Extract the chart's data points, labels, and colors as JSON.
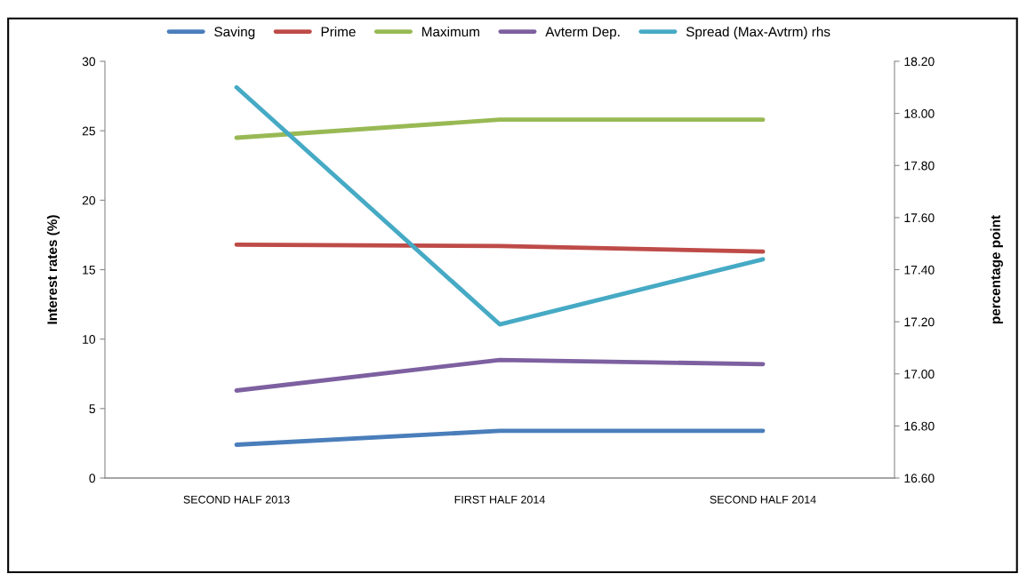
{
  "chart_data": {
    "type": "line",
    "ylabel": "Interest rates (%)",
    "y2label": "percentage point",
    "categories": [
      "SECOND HALF 2013",
      "FIRST HALF 2014",
      "SECOND HALF 2014"
    ],
    "series": [
      {
        "name": "Saving",
        "color": "#4a7ebb",
        "values": [
          2.4,
          3.4,
          3.4
        ]
      },
      {
        "name": "Prime",
        "color": "#be4b48",
        "values": [
          16.8,
          16.7,
          16.3
        ]
      },
      {
        "name": "Maximum",
        "color": "#98b954",
        "values": [
          24.5,
          25.8,
          25.8
        ]
      },
      {
        "name": "Avterm Dep.",
        "color": "#7d60a0",
        "values": [
          6.3,
          8.5,
          8.2
        ]
      },
      {
        "name": "Spread (Max-Avtrm) rhs",
        "color": "#46aac5",
        "values": [
          18.1,
          17.19,
          17.44
        ],
        "axis": "y2"
      }
    ],
    "ylim": [
      0,
      30
    ],
    "yticks": [
      0,
      5,
      10,
      15,
      20,
      25,
      30
    ],
    "y2lim": [
      16.6,
      18.2
    ],
    "y2ticks": [
      {
        "value": 16.6,
        "label": "16.60"
      },
      {
        "value": 16.8,
        "label": "16.80"
      },
      {
        "value": 17.0,
        "label": "17.00"
      },
      {
        "value": 17.2,
        "label": "17.20"
      },
      {
        "value": 17.4,
        "label": "17.40"
      },
      {
        "value": 17.6,
        "label": "17.60"
      },
      {
        "value": 17.8,
        "label": "17.80"
      },
      {
        "value": 18.0,
        "label": "18.00"
      },
      {
        "value": 18.2,
        "label": "18.20"
      }
    ],
    "grid": false,
    "legend": "top",
    "marker": "none",
    "line_style": "solid"
  }
}
